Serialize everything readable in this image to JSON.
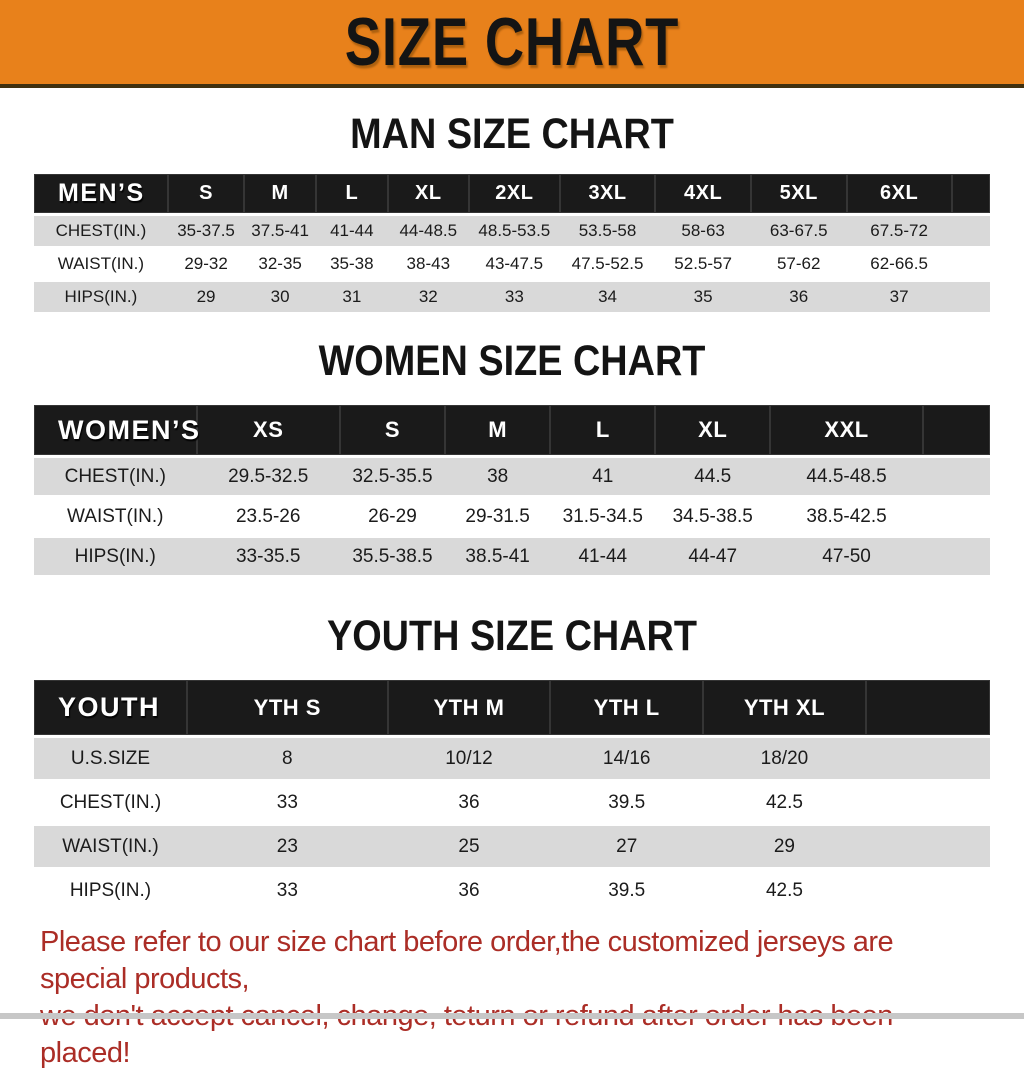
{
  "colors": {
    "banner_bg": "#e8811b",
    "banner_text": "#141414",
    "table_header_bg": "#1a1a1a",
    "table_header_text": "#ffffff",
    "stripe_row_bg": "#d9d9d9",
    "notice_text": "#ab2d26"
  },
  "banner": {
    "title": "SIZE CHART"
  },
  "sections": [
    {
      "heading": "MAN SIZE CHART",
      "table": {
        "header": [
          "MEN’S",
          "S",
          "M",
          "L",
          "XL",
          "2XL",
          "3XL",
          "4XL",
          "5XL",
          "6XL"
        ],
        "rows": [
          {
            "label": "CHEST(IN.)",
            "values": [
              "35-37.5",
              "37.5-41",
              "41-44",
              "44-48.5",
              "48.5-53.5",
              "53.5-58",
              "58-63",
              "63-67.5",
              "67.5-72"
            ]
          },
          {
            "label": "WAIST(IN.)",
            "values": [
              "29-32",
              "32-35",
              "35-38",
              "38-43",
              "43-47.5",
              "47.5-52.5",
              "52.5-57",
              "57-62",
              "62-66.5"
            ]
          },
          {
            "label": "HIPS(IN.)",
            "values": [
              "29",
              "30",
              "31",
              "32",
              "33",
              "34",
              "35",
              "36",
              "37"
            ]
          }
        ]
      }
    },
    {
      "heading": "WOMEN SIZE CHART",
      "table": {
        "header": [
          "WOMEN’S",
          "XS",
          "S",
          "M",
          "L",
          "XL",
          "XXL"
        ],
        "rows": [
          {
            "label": "CHEST(IN.)",
            "values": [
              "29.5-32.5",
              "32.5-35.5",
              "38",
              "41",
              "44.5",
              "44.5-48.5"
            ]
          },
          {
            "label": "WAIST(IN.)",
            "values": [
              "23.5-26",
              "26-29",
              "29-31.5",
              "31.5-34.5",
              "34.5-38.5",
              "38.5-42.5"
            ]
          },
          {
            "label": "HIPS(IN.)",
            "values": [
              "33-35.5",
              "35.5-38.5",
              "38.5-41",
              "41-44",
              "44-47",
              "47-50"
            ]
          }
        ]
      }
    },
    {
      "heading": "YOUTH SIZE CHART",
      "table": {
        "header": [
          "YOUTH",
          "YTH S",
          "YTH M",
          "YTH L",
          "YTH XL"
        ],
        "rows": [
          {
            "label": "U.S.SIZE",
            "values": [
              "8",
              "10/12",
              "14/16",
              "18/20"
            ]
          },
          {
            "label": "CHEST(IN.)",
            "values": [
              "33",
              "36",
              "39.5",
              "42.5"
            ]
          },
          {
            "label": "WAIST(IN.)",
            "values": [
              "23",
              "25",
              "27",
              "29"
            ]
          },
          {
            "label": "HIPS(IN.)",
            "values": [
              "33",
              "36",
              "39.5",
              "42.5"
            ]
          }
        ]
      }
    }
  ],
  "notice": {
    "line1": "Please refer to our size chart before order,the customized jerseys are special products,",
    "line2": "we don't accept cancel, change, teturn or refund after order has been placed!"
  }
}
